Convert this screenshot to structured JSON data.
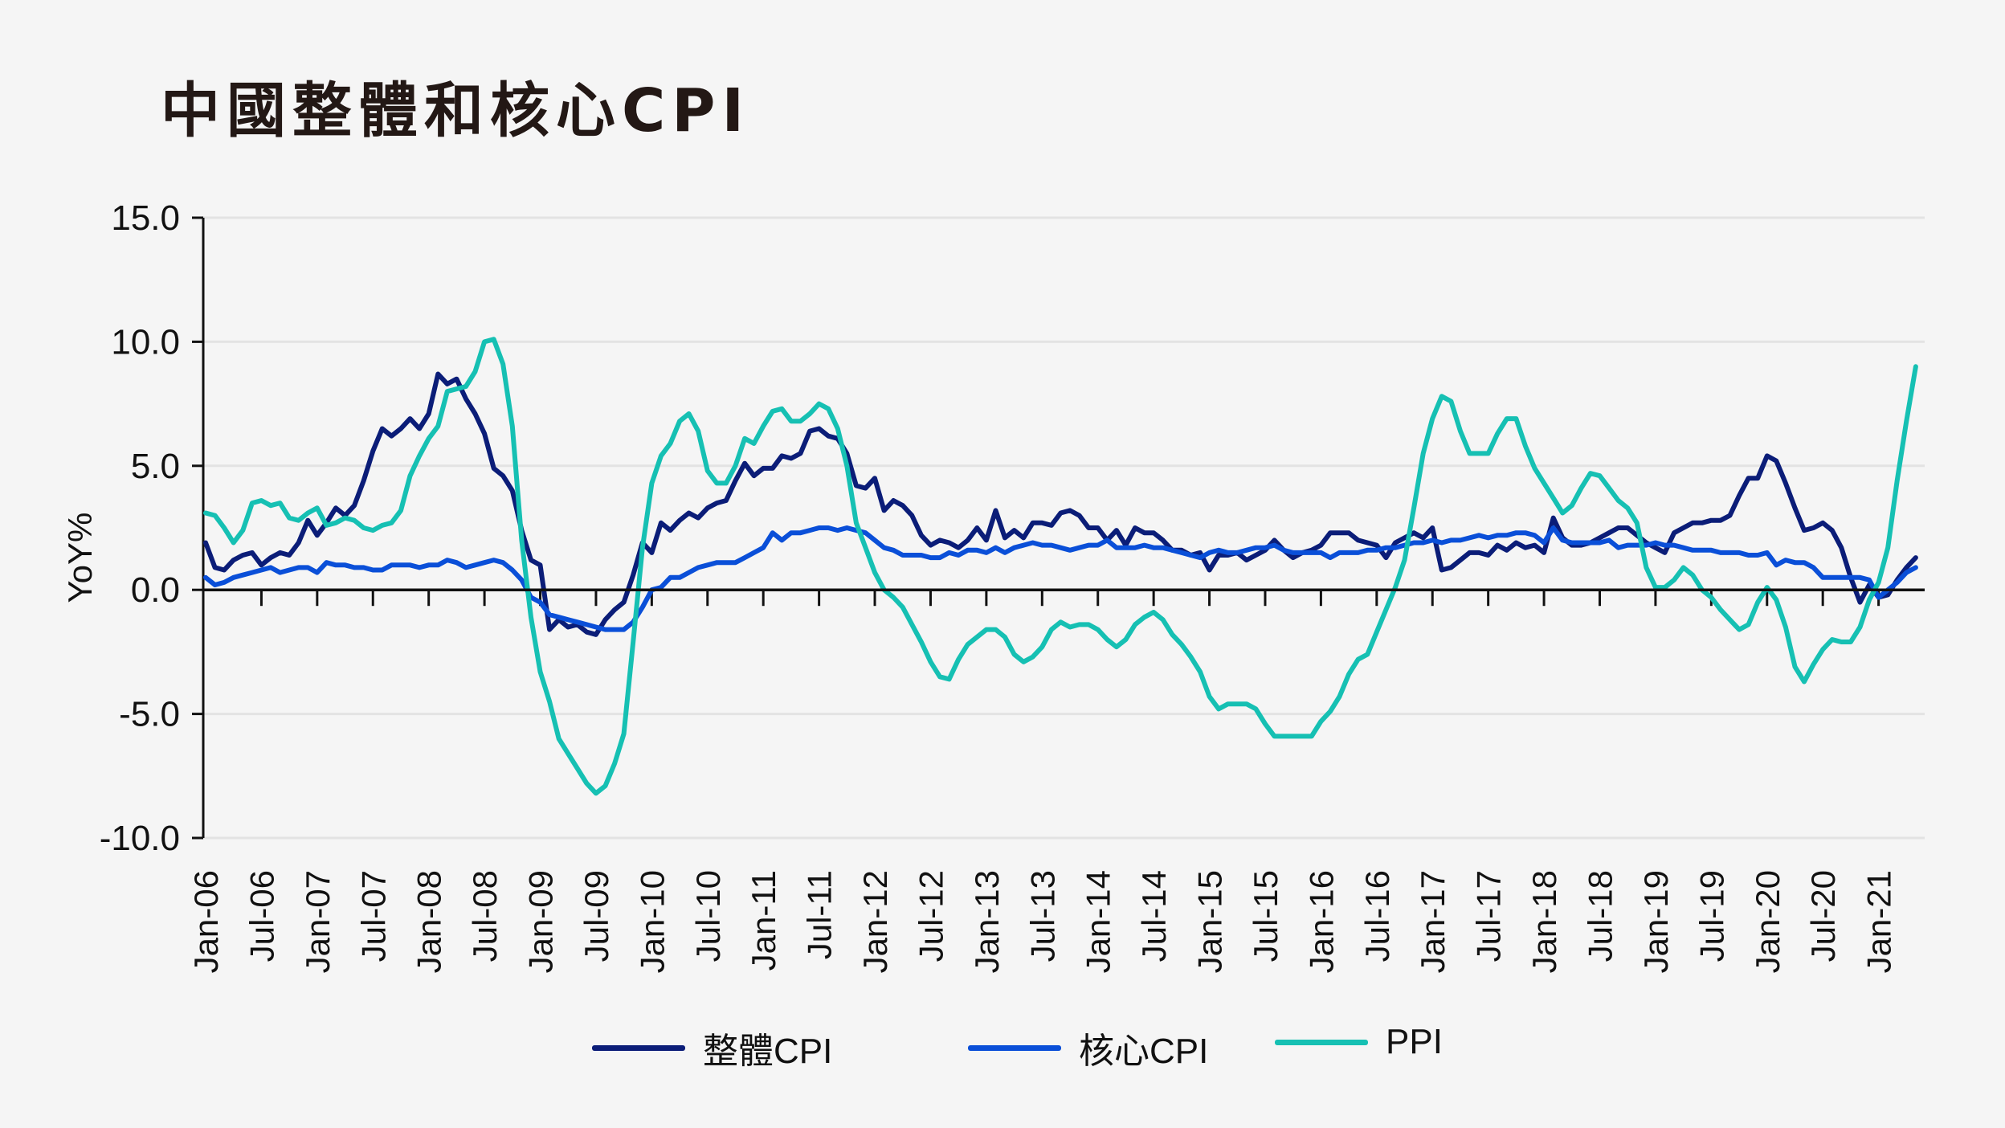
{
  "title": "中國整體和核心CPI",
  "chart_data": {
    "type": "line",
    "title": "中國整體和核心CPI",
    "ylabel": "YoY%",
    "xlabel": "",
    "ylim": [
      -10,
      15
    ],
    "yticks": [
      "15.0",
      "10.0",
      "5.0",
      "0.0",
      "-5.0",
      "-10.0"
    ],
    "ytick_values": [
      15,
      10,
      5,
      0,
      -5,
      -10
    ],
    "grid": true,
    "legend_position": "bottom",
    "x_start": "Jan-06",
    "x_end": "May-21",
    "frequency": "monthly",
    "xtick_labels": [
      "Jan-06",
      "Jul-06",
      "Jan-07",
      "Jul-07",
      "Jan-08",
      "Jul-08",
      "Jan-09",
      "Jul-09",
      "Jan-10",
      "Jul-10",
      "Jan-11",
      "Jul-11",
      "Jan-12",
      "Jul-12",
      "Jan-13",
      "Jul-13",
      "Jan-14",
      "Jul-14",
      "Jan-15",
      "Jul-15",
      "Jan-16",
      "Jul-16",
      "Jan-17",
      "Jul-17",
      "Jan-18",
      "Jul-18",
      "Jan-19",
      "Jul-19",
      "Jan-20",
      "Jul-20",
      "Jan-21"
    ],
    "series": [
      {
        "name": "整體CPI",
        "color": "#0b1d78",
        "values": [
          1.9,
          0.9,
          0.8,
          1.2,
          1.4,
          1.5,
          1.0,
          1.3,
          1.5,
          1.4,
          1.9,
          2.8,
          2.2,
          2.7,
          3.3,
          3.0,
          3.4,
          4.4,
          5.6,
          6.5,
          6.2,
          6.5,
          6.9,
          6.5,
          7.1,
          8.7,
          8.3,
          8.5,
          7.7,
          7.1,
          6.3,
          4.9,
          4.6,
          4.0,
          2.4,
          1.2,
          1.0,
          -1.6,
          -1.2,
          -1.5,
          -1.4,
          -1.7,
          -1.8,
          -1.2,
          -0.8,
          -0.5,
          0.6,
          1.9,
          1.5,
          2.7,
          2.4,
          2.8,
          3.1,
          2.9,
          3.3,
          3.5,
          3.6,
          4.4,
          5.1,
          4.6,
          4.9,
          4.9,
          5.4,
          5.3,
          5.5,
          6.4,
          6.5,
          6.2,
          6.1,
          5.5,
          4.2,
          4.1,
          4.5,
          3.2,
          3.6,
          3.4,
          3.0,
          2.2,
          1.8,
          2.0,
          1.9,
          1.7,
          2.0,
          2.5,
          2.0,
          3.2,
          2.1,
          2.4,
          2.1,
          2.7,
          2.7,
          2.6,
          3.1,
          3.2,
          3.0,
          2.5,
          2.5,
          2.0,
          2.4,
          1.8,
          2.5,
          2.3,
          2.3,
          2.0,
          1.6,
          1.6,
          1.4,
          1.5,
          0.8,
          1.4,
          1.4,
          1.5,
          1.2,
          1.4,
          1.6,
          2.0,
          1.6,
          1.3,
          1.5,
          1.6,
          1.8,
          2.3,
          2.3,
          2.3,
          2.0,
          1.9,
          1.8,
          1.3,
          1.9,
          2.1,
          2.3,
          2.1,
          2.5,
          0.8,
          0.9,
          1.2,
          1.5,
          1.5,
          1.4,
          1.8,
          1.6,
          1.9,
          1.7,
          1.8,
          1.5,
          2.9,
          2.1,
          1.8,
          1.8,
          1.9,
          2.1,
          2.3,
          2.5,
          2.5,
          2.2,
          1.9,
          1.7,
          1.5,
          2.3,
          2.5,
          2.7,
          2.7,
          2.8,
          2.8,
          3.0,
          3.8,
          4.5,
          4.5,
          5.4,
          5.2,
          4.3,
          3.3,
          2.4,
          2.5,
          2.7,
          2.4,
          1.7,
          0.5,
          -0.5,
          0.2,
          -0.3,
          -0.2,
          0.4,
          0.9,
          1.3
        ]
      },
      {
        "name": "核心CPI",
        "color": "#0a4fd8",
        "values": [
          0.5,
          0.2,
          0.3,
          0.5,
          0.6,
          0.7,
          0.8,
          0.9,
          0.7,
          0.8,
          0.9,
          0.9,
          0.7,
          1.1,
          1.0,
          1.0,
          0.9,
          0.9,
          0.8,
          0.8,
          1.0,
          1.0,
          1.0,
          0.9,
          1.0,
          1.0,
          1.2,
          1.1,
          0.9,
          1.0,
          1.1,
          1.2,
          1.1,
          0.8,
          0.4,
          -0.3,
          -0.5,
          -1.0,
          -1.1,
          -1.2,
          -1.3,
          -1.4,
          -1.5,
          -1.6,
          -1.6,
          -1.6,
          -1.3,
          -0.7,
          0.0,
          0.1,
          0.5,
          0.5,
          0.7,
          0.9,
          1.0,
          1.1,
          1.1,
          1.1,
          1.3,
          1.5,
          1.7,
          2.3,
          2.0,
          2.3,
          2.3,
          2.4,
          2.5,
          2.5,
          2.4,
          2.5,
          2.4,
          2.3,
          2.0,
          1.7,
          1.6,
          1.4,
          1.4,
          1.4,
          1.3,
          1.3,
          1.5,
          1.4,
          1.6,
          1.6,
          1.5,
          1.7,
          1.5,
          1.7,
          1.8,
          1.9,
          1.8,
          1.8,
          1.7,
          1.6,
          1.7,
          1.8,
          1.8,
          2.0,
          1.7,
          1.7,
          1.7,
          1.8,
          1.7,
          1.7,
          1.6,
          1.5,
          1.4,
          1.3,
          1.5,
          1.6,
          1.5,
          1.5,
          1.6,
          1.7,
          1.7,
          1.8,
          1.6,
          1.5,
          1.5,
          1.5,
          1.5,
          1.3,
          1.5,
          1.5,
          1.5,
          1.6,
          1.6,
          1.7,
          1.7,
          1.8,
          1.9,
          1.9,
          2.0,
          1.9,
          2.0,
          2.0,
          2.1,
          2.2,
          2.1,
          2.2,
          2.2,
          2.3,
          2.3,
          2.2,
          1.9,
          2.5,
          2.0,
          1.9,
          1.9,
          1.9,
          1.9,
          2.0,
          1.7,
          1.8,
          1.8,
          1.8,
          1.9,
          1.8,
          1.8,
          1.7,
          1.6,
          1.6,
          1.6,
          1.5,
          1.5,
          1.5,
          1.4,
          1.4,
          1.5,
          1.0,
          1.2,
          1.1,
          1.1,
          0.9,
          0.5,
          0.5,
          0.5,
          0.5,
          0.5,
          0.4,
          -0.3,
          0.0,
          0.3,
          0.7,
          0.9
        ]
      },
      {
        "name": "PPI",
        "color": "#16c0b3",
        "values": [
          3.1,
          3.0,
          2.5,
          1.9,
          2.4,
          3.5,
          3.6,
          3.4,
          3.5,
          2.9,
          2.8,
          3.1,
          3.3,
          2.6,
          2.7,
          2.9,
          2.8,
          2.5,
          2.4,
          2.6,
          2.7,
          3.2,
          4.6,
          5.4,
          6.1,
          6.6,
          8.0,
          8.1,
          8.2,
          8.8,
          10.0,
          10.1,
          9.1,
          6.6,
          2.0,
          -1.1,
          -3.3,
          -4.5,
          -6.0,
          -6.6,
          -7.2,
          -7.8,
          -8.2,
          -7.9,
          -7.0,
          -5.8,
          -2.1,
          1.7,
          4.3,
          5.4,
          5.9,
          6.8,
          7.1,
          6.4,
          4.8,
          4.3,
          4.3,
          5.0,
          6.1,
          5.9,
          6.6,
          7.2,
          7.3,
          6.8,
          6.8,
          7.1,
          7.5,
          7.3,
          6.5,
          5.0,
          2.7,
          1.7,
          0.7,
          0.0,
          -0.3,
          -0.7,
          -1.4,
          -2.1,
          -2.9,
          -3.5,
          -3.6,
          -2.8,
          -2.2,
          -1.9,
          -1.6,
          -1.6,
          -1.9,
          -2.6,
          -2.9,
          -2.7,
          -2.3,
          -1.6,
          -1.3,
          -1.5,
          -1.4,
          -1.4,
          -1.6,
          -2.0,
          -2.3,
          -2.0,
          -1.4,
          -1.1,
          -0.9,
          -1.2,
          -1.8,
          -2.2,
          -2.7,
          -3.3,
          -4.3,
          -4.8,
          -4.6,
          -4.6,
          -4.6,
          -4.8,
          -5.4,
          -5.9,
          -5.9,
          -5.9,
          -5.9,
          -5.9,
          -5.3,
          -4.9,
          -4.3,
          -3.4,
          -2.8,
          -2.6,
          -1.7,
          -0.8,
          0.1,
          1.2,
          3.3,
          5.5,
          6.9,
          7.8,
          7.6,
          6.4,
          5.5,
          5.5,
          5.5,
          6.3,
          6.9,
          6.9,
          5.8,
          4.9,
          4.3,
          3.7,
          3.1,
          3.4,
          4.1,
          4.7,
          4.6,
          4.1,
          3.6,
          3.3,
          2.7,
          0.9,
          0.1,
          0.1,
          0.4,
          0.9,
          0.6,
          0.0,
          -0.3,
          -0.8,
          -1.2,
          -1.6,
          -1.4,
          -0.5,
          0.1,
          -0.4,
          -1.5,
          -3.1,
          -3.7,
          -3.0,
          -2.4,
          -2.0,
          -2.1,
          -2.1,
          -1.5,
          -0.4,
          0.3,
          1.7,
          4.4,
          6.8,
          9.0
        ]
      }
    ]
  }
}
